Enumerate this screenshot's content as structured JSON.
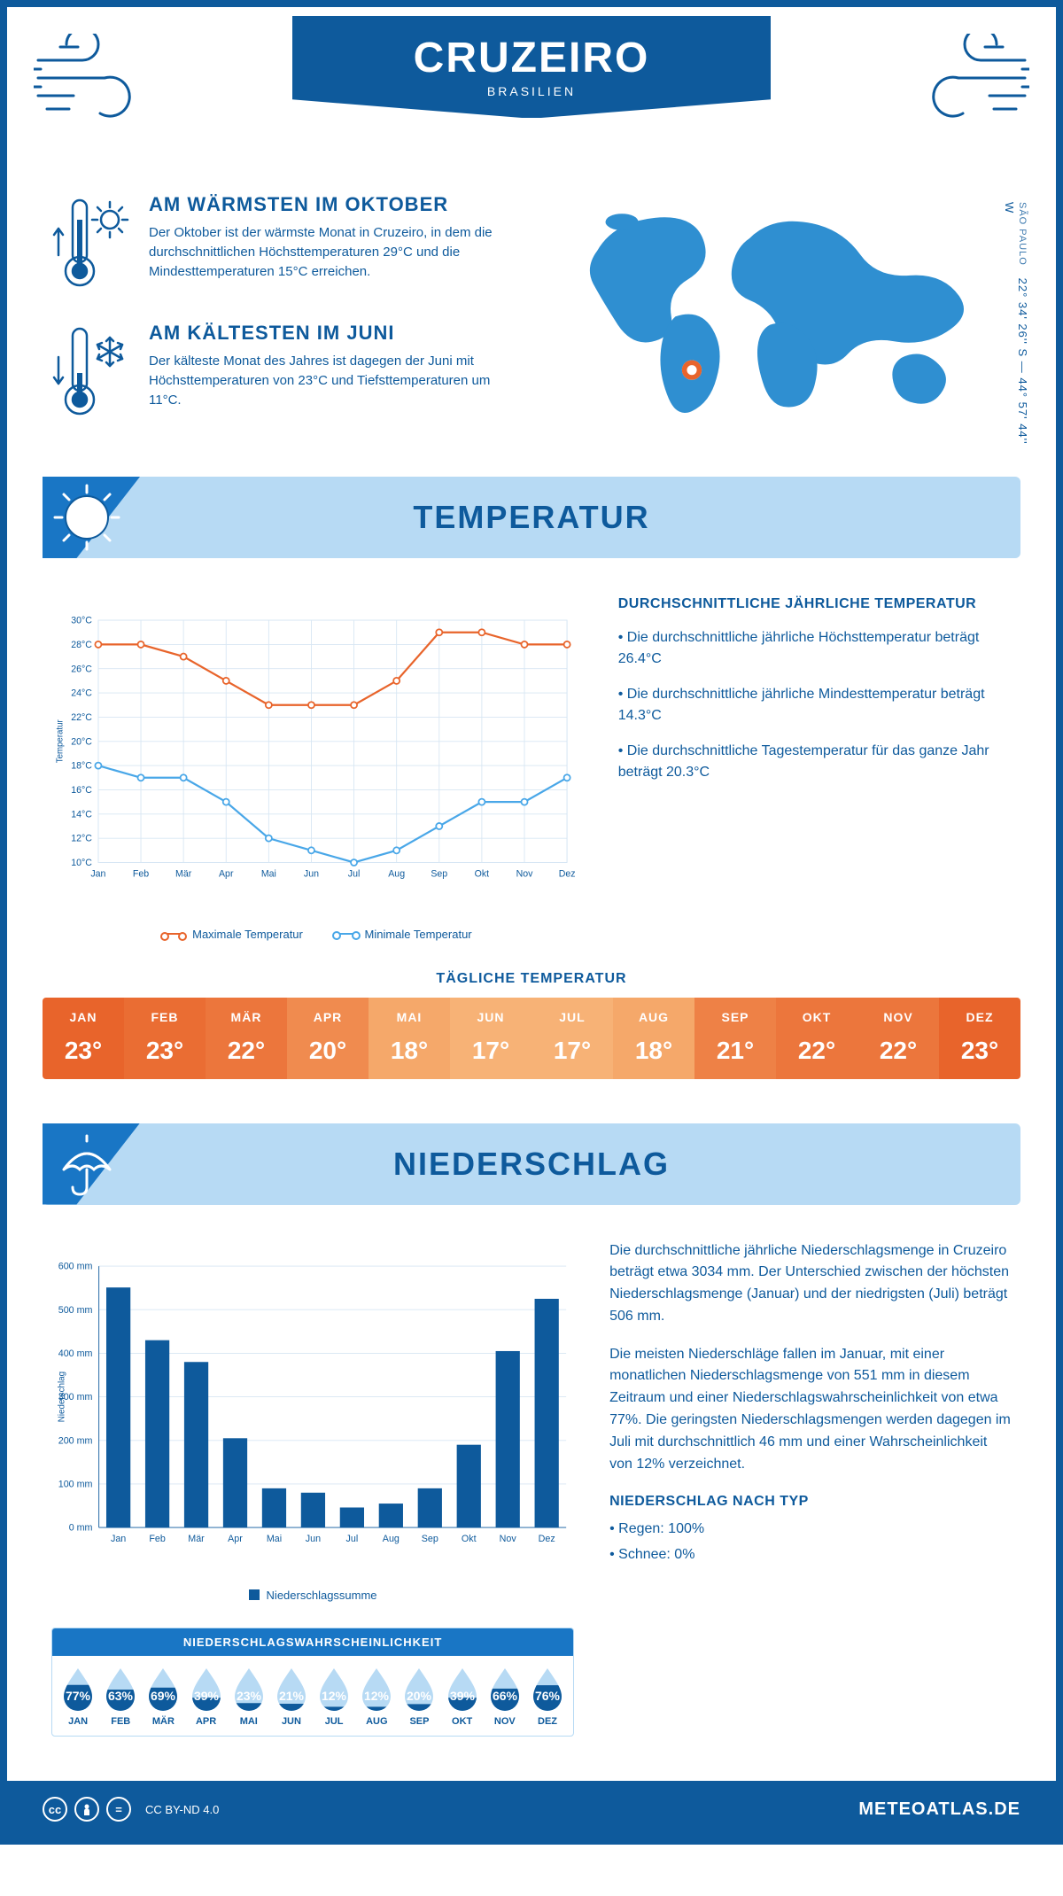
{
  "header": {
    "city": "CRUZEIRO",
    "country": "BRASILIEN",
    "region": "SÃO PAULO",
    "coords": "22° 34' 26'' S — 44° 57' 44'' W"
  },
  "warmest": {
    "title": "AM WÄRMSTEN IM OKTOBER",
    "text": "Der Oktober ist der wärmste Monat in Cruzeiro, in dem die durchschnittlichen Höchsttemperaturen 29°C und die Mindesttemperaturen 15°C erreichen."
  },
  "coldest": {
    "title": "AM KÄLTESTEN IM JUNI",
    "text": "Der kälteste Monat des Jahres ist dagegen der Juni mit Höchsttemperaturen von 23°C und Tiefsttemperaturen um 11°C."
  },
  "sections": {
    "temperature": "TEMPERATUR",
    "precip": "NIEDERSCHLAG"
  },
  "months": [
    "Jan",
    "Feb",
    "Mär",
    "Apr",
    "Mai",
    "Jun",
    "Jul",
    "Aug",
    "Sep",
    "Okt",
    "Nov",
    "Dez"
  ],
  "months_upper": [
    "JAN",
    "FEB",
    "MÄR",
    "APR",
    "MAI",
    "JUN",
    "JUL",
    "AUG",
    "SEP",
    "OKT",
    "NOV",
    "DEZ"
  ],
  "temp_chart": {
    "y_label": "Temperatur",
    "ymin": 10,
    "ymax": 30,
    "ystep": 2,
    "max_series": [
      28,
      28,
      27,
      25,
      23,
      23,
      23,
      25,
      29,
      29,
      28,
      28
    ],
    "min_series": [
      18,
      17,
      17,
      15,
      12,
      11,
      10,
      11,
      13,
      15,
      15,
      17
    ],
    "max_color": "#e8642b",
    "min_color": "#49a7e8",
    "grid_color": "#d7e6f3",
    "legend_max": "Maximale Temperatur",
    "legend_min": "Minimale Temperatur"
  },
  "temp_facts": {
    "title": "DURCHSCHNITTLICHE JÄHRLICHE TEMPERATUR",
    "p1": "• Die durchschnittliche jährliche Höchsttemperatur beträgt 26.4°C",
    "p2": "• Die durchschnittliche jährliche Mindesttemperatur beträgt 14.3°C",
    "p3": "• Die durchschnittliche Tagestemperatur für das ganze Jahr beträgt 20.3°C"
  },
  "daily": {
    "title": "TÄGLICHE TEMPERATUR",
    "values": [
      "23°",
      "23°",
      "22°",
      "20°",
      "18°",
      "17°",
      "17°",
      "18°",
      "21°",
      "22°",
      "22°",
      "23°"
    ],
    "colors": [
      "#e8642b",
      "#ea6d33",
      "#ec763c",
      "#f08b4f",
      "#f5a86a",
      "#f7b276",
      "#f7b276",
      "#f5a86a",
      "#ee8146",
      "#ec763c",
      "#ec763c",
      "#e8642b"
    ]
  },
  "precip_chart": {
    "y_label": "Niederschlag",
    "ymax": 600,
    "ystep": 100,
    "values": [
      551,
      430,
      380,
      205,
      90,
      80,
      46,
      55,
      90,
      190,
      405,
      525
    ],
    "bar_color": "#0e5a9c",
    "grid_color": "#d7e6f3",
    "legend": "Niederschlagssumme"
  },
  "precip_text": {
    "p1": "Die durchschnittliche jährliche Niederschlagsmenge in Cruzeiro beträgt etwa 3034 mm. Der Unterschied zwischen der höchsten Niederschlagsmenge (Januar) und der niedrigsten (Juli) beträgt 506 mm.",
    "p2": "Die meisten Niederschläge fallen im Januar, mit einer monatlichen Niederschlagsmenge von 551 mm in diesem Zeitraum und einer Niederschlagswahrscheinlichkeit von etwa 77%. Die geringsten Niederschlagsmengen werden dagegen im Juli mit durchschnittlich 46 mm und einer Wahrscheinlichkeit von 12% verzeichnet.",
    "type_title": "NIEDERSCHLAG NACH TYP",
    "rain": "• Regen: 100%",
    "snow": "• Schnee: 0%"
  },
  "prob": {
    "title": "NIEDERSCHLAGSWAHRSCHEINLICHKEIT",
    "values": [
      77,
      63,
      69,
      39,
      23,
      21,
      12,
      12,
      20,
      39,
      66,
      76
    ],
    "fill_color": "#0e5a9c",
    "empty_color": "#b7daf4"
  },
  "footer": {
    "license": "CC BY-ND 4.0",
    "site": "METEOATLAS.DE"
  },
  "palette": {
    "primary": "#0e5a9c",
    "light": "#b7daf4",
    "mid": "#1976c5",
    "map": "#2f8fd1"
  }
}
